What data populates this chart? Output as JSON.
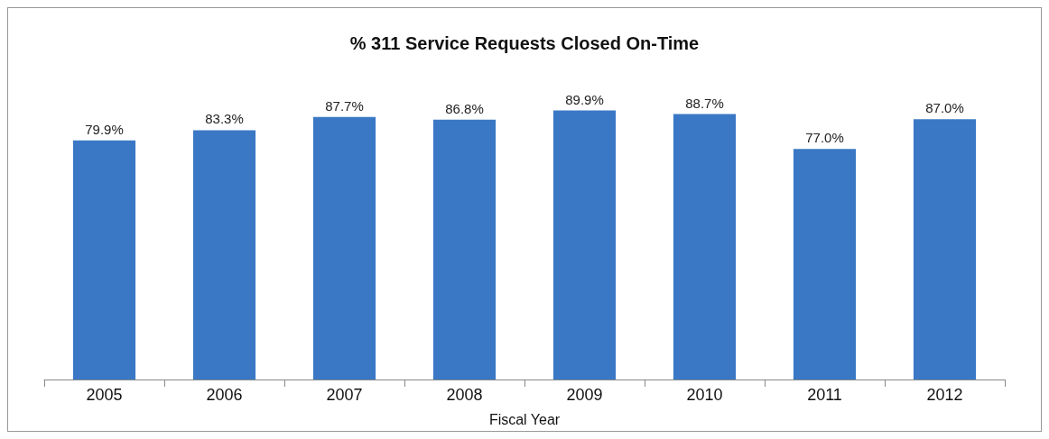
{
  "chart_data": {
    "type": "bar",
    "title": "% 311 Service Requests Closed On-Time",
    "xlabel": "Fiscal Year",
    "categories": [
      "2005",
      "2006",
      "2007",
      "2008",
      "2009",
      "2010",
      "2011",
      "2012"
    ],
    "values": [
      79.9,
      83.3,
      87.7,
      86.8,
      89.9,
      88.7,
      77.0,
      87.0
    ],
    "value_labels": [
      "79.9%",
      "83.3%",
      "87.7%",
      "86.8%",
      "89.9%",
      "88.7%",
      "77.0%",
      "87.0%"
    ],
    "color": "#3a78c6",
    "grid": false
  }
}
